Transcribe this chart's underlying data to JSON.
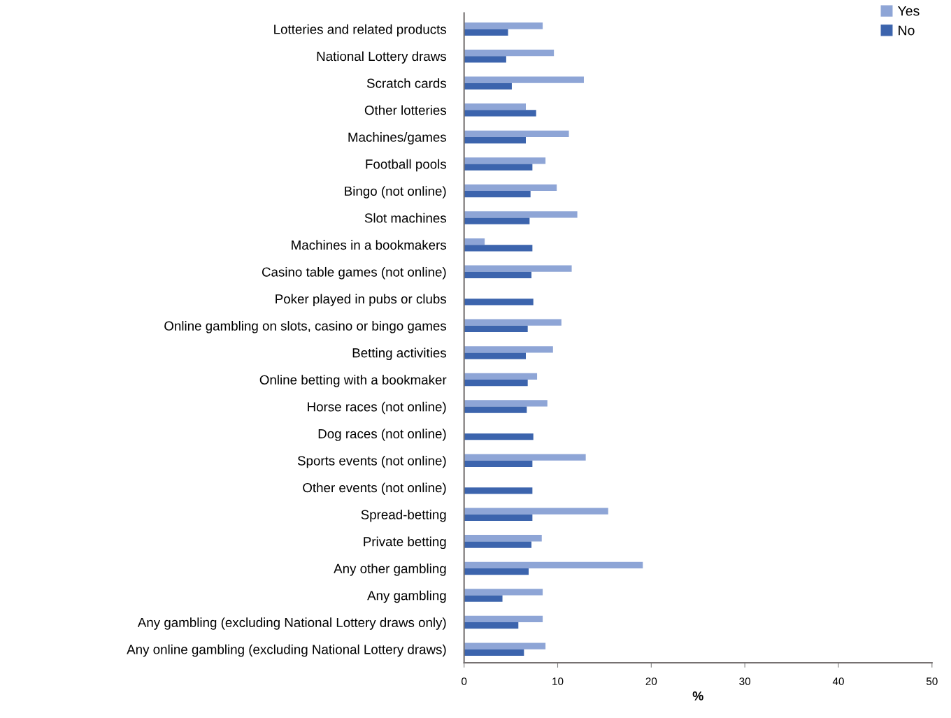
{
  "chart_data": {
    "type": "bar",
    "orientation": "horizontal",
    "xlabel": "%",
    "categories": [
      "Lotteries and related products",
      "National Lottery draws",
      "Scratch cards",
      "Other lotteries",
      "Machines/games",
      "Football pools",
      "Bingo (not online)",
      "Slot machines",
      "Machines in a bookmakers",
      "Casino table games (not online)",
      "Poker played in pubs or clubs",
      "Online gambling on slots, casino or bingo games",
      "Betting activities",
      "Online betting with a bookmaker",
      "Horse races (not online)",
      "Dog races (not online)",
      "Sports events (not online)",
      "Other events (not online)",
      "Spread-betting",
      "Private betting",
      "Any other gambling",
      "Any gambling",
      "Any gambling (excluding National Lottery draws only)",
      "Any online gambling (excluding National Lottery draws)"
    ],
    "series": [
      {
        "name": "Yes",
        "color": "#8ea5d6",
        "values": [
          8.4,
          9.6,
          12.8,
          6.6,
          11.2,
          8.7,
          9.9,
          12.1,
          2.2,
          11.5,
          null,
          10.4,
          9.5,
          7.8,
          8.9,
          null,
          13.0,
          null,
          15.4,
          8.3,
          19.1,
          8.4,
          8.4,
          8.7
        ]
      },
      {
        "name": "No",
        "color": "#3c64ad",
        "values": [
          4.7,
          4.5,
          5.1,
          7.7,
          6.6,
          7.3,
          7.1,
          7.0,
          7.3,
          7.2,
          7.4,
          6.8,
          6.6,
          6.8,
          6.7,
          7.4,
          7.3,
          7.3,
          7.3,
          7.2,
          6.9,
          4.1,
          5.8,
          6.4
        ]
      }
    ],
    "xlim": [
      0,
      50
    ],
    "xticks": [
      0,
      10,
      20,
      30,
      40,
      50
    ],
    "grid": false,
    "legend": "top right"
  }
}
